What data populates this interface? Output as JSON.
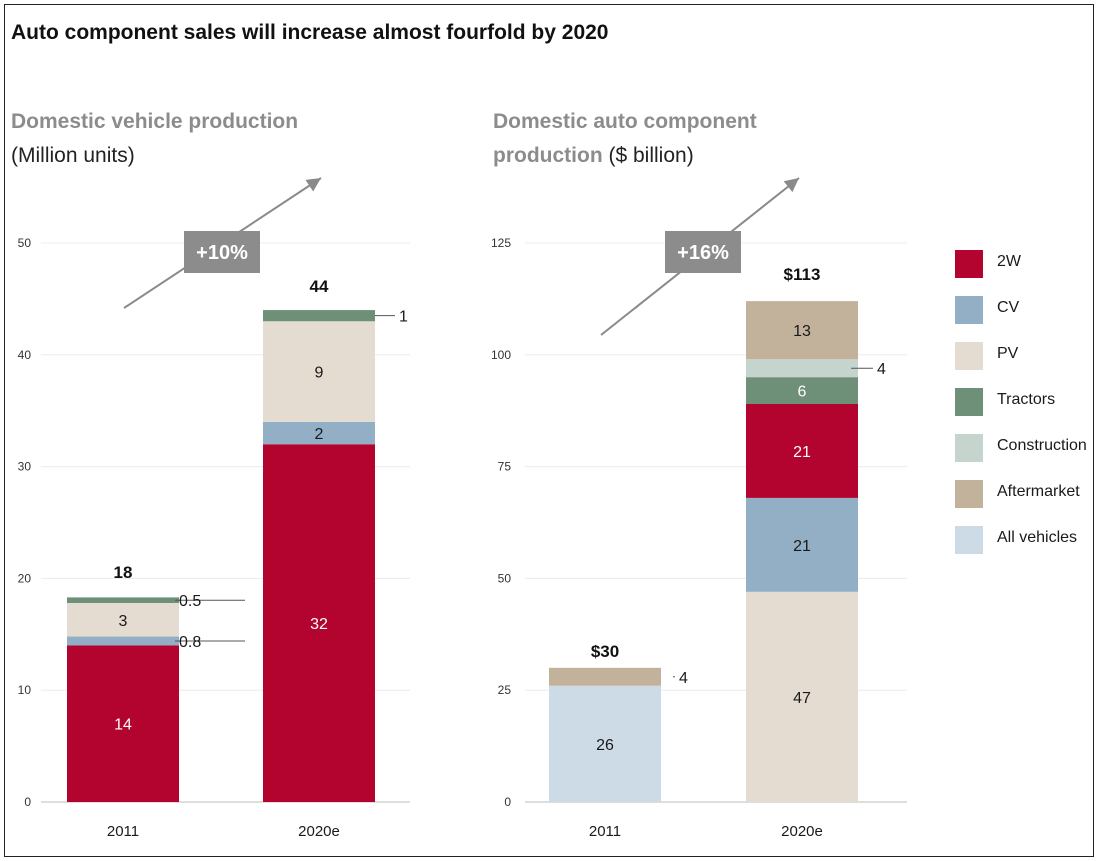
{
  "title": "Auto component sales will increase almost fourfold by 2020",
  "colors": {
    "2W": "#b3042f",
    "CV": "#92afc6",
    "PV": "#e4dbd1",
    "Tractors": "#6e8f78",
    "Construction": "#c5d4cd",
    "Aftermarket": "#c2b29b",
    "All vehicles": "#ccdbe6"
  },
  "legend": [
    "2W",
    "CV",
    "PV",
    "Tractors",
    "Construction",
    "Aftermarket",
    "All vehicles"
  ],
  "chart_data": [
    {
      "type": "bar",
      "stacked": true,
      "title_bold": "Domestic vehicle production",
      "title_sub": "(Million units)",
      "categories": [
        "2011",
        "2020e"
      ],
      "yticks": [
        0,
        10,
        20,
        30,
        40,
        50
      ],
      "ylim": [
        0,
        50
      ],
      "growth_label": "+10%",
      "totals": [
        "18",
        "44"
      ],
      "series": [
        {
          "name": "2W",
          "values": [
            14,
            32
          ],
          "labels": [
            "14",
            "32"
          ]
        },
        {
          "name": "CV",
          "values": [
            0.8,
            2
          ],
          "labels": [
            "0.8",
            "2"
          ]
        },
        {
          "name": "PV",
          "values": [
            3,
            9
          ],
          "labels": [
            "3",
            "9"
          ]
        },
        {
          "name": "Tractors",
          "values": [
            0.5,
            1
          ],
          "labels": [
            "0.5",
            "1"
          ]
        }
      ]
    },
    {
      "type": "bar",
      "stacked": true,
      "title_bold": "Domestic auto component production",
      "title_sub": "($ billion)",
      "categories": [
        "2011",
        "2020e"
      ],
      "yticks": [
        0,
        25,
        50,
        75,
        100,
        125
      ],
      "ylim": [
        0,
        125
      ],
      "growth_label": "+16%",
      "totals": [
        "$30",
        "$113"
      ],
      "series": [
        {
          "name": "All vehicles",
          "values": [
            26,
            0
          ],
          "labels": [
            "26",
            ""
          ]
        },
        {
          "name": "PV",
          "values": [
            0,
            47
          ],
          "labels": [
            "",
            "47"
          ]
        },
        {
          "name": "CV",
          "values": [
            0,
            21
          ],
          "labels": [
            "",
            "21"
          ]
        },
        {
          "name": "2W",
          "values": [
            0,
            21
          ],
          "labels": [
            "",
            "21"
          ]
        },
        {
          "name": "Tractors",
          "values": [
            0,
            6
          ],
          "labels": [
            "",
            "6"
          ]
        },
        {
          "name": "Construction",
          "values": [
            0,
            4
          ],
          "labels": [
            "",
            "4"
          ]
        },
        {
          "name": "Aftermarket",
          "values": [
            4,
            13
          ],
          "labels": [
            "4",
            "13"
          ]
        }
      ]
    }
  ]
}
